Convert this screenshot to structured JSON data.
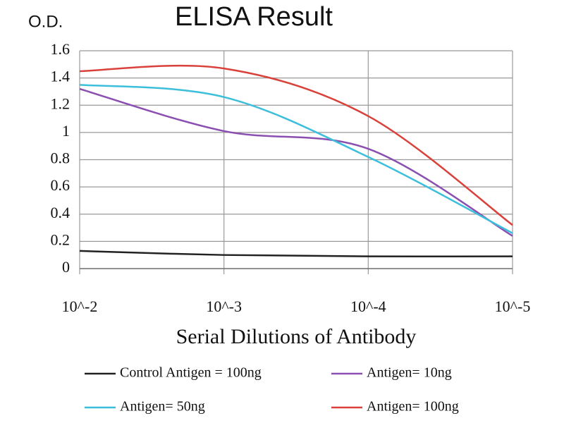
{
  "chart_data": {
    "type": "line",
    "title": "ELISA Result",
    "y_label": "O.D.",
    "x_label": "Serial Dilutions of Antibody",
    "categories": [
      "10^-2",
      "10^-3",
      "10^-4",
      "10^-5"
    ],
    "series": [
      {
        "name": "Control Antigen = 100ng",
        "color": "#222222",
        "values": [
          0.13,
          0.1,
          0.09,
          0.09
        ]
      },
      {
        "name": "Antigen= 10ng",
        "color": "#8a4fb0",
        "values": [
          1.32,
          1.01,
          0.88,
          0.24
        ]
      },
      {
        "name": "Antigen= 50ng",
        "color": "#3dbfdc",
        "values": [
          1.35,
          1.26,
          0.82,
          0.26
        ]
      },
      {
        "name": "Antigen= 100ng",
        "color": "#d9413a",
        "values": [
          1.45,
          1.47,
          1.12,
          0.32
        ]
      }
    ],
    "ylim": [
      0,
      1.6
    ],
    "yticks": [
      0,
      0.2,
      0.4,
      0.6,
      0.8,
      1,
      1.2,
      1.4,
      1.6
    ],
    "grid": true
  }
}
